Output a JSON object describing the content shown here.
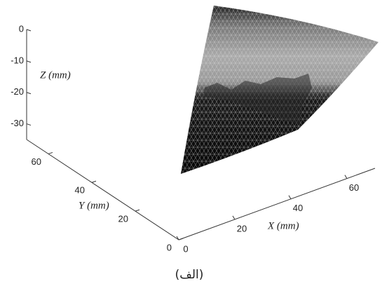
{
  "chart_data": {
    "type": "surface3d",
    "zlabel": "Z (mm)",
    "ylabel": "Y (mm)",
    "xlabel": "X (mm)",
    "xlim": [
      0,
      70
    ],
    "ylim": [
      0,
      70
    ],
    "zlim": [
      -35,
      0
    ],
    "xticks": [
      0,
      20,
      40,
      60
    ],
    "yticks": [
      0,
      20,
      40,
      60
    ],
    "zticks": [
      0,
      -10,
      -20,
      -30
    ],
    "caption": "(الف)"
  }
}
